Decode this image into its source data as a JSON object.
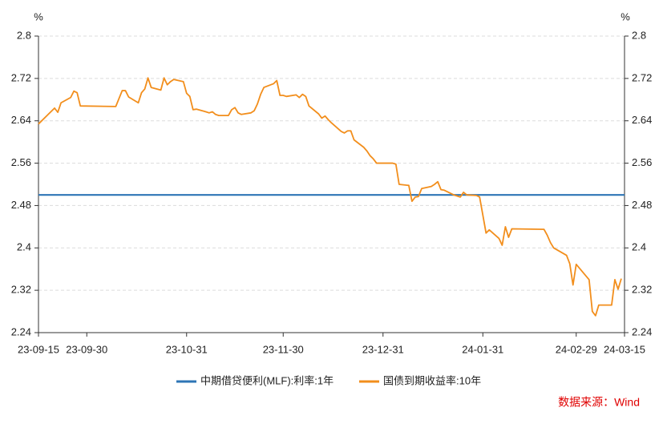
{
  "chart_data": {
    "type": "line",
    "unit_label": "%",
    "xlim": [
      "23-09-15",
      "24-03-15"
    ],
    "xticks": [
      "23-09-15",
      "23-09-30",
      "23-10-31",
      "23-11-30",
      "23-12-31",
      "24-01-31",
      "24-02-29",
      "24-03-15"
    ],
    "ylim": [
      2.24,
      2.8
    ],
    "yticks": [
      2.24,
      2.32,
      2.4,
      2.48,
      2.56,
      2.64,
      2.72,
      2.8
    ],
    "y2lim": [
      2.24,
      2.8
    ],
    "y2ticks": [
      2.24,
      2.32,
      2.4,
      2.48,
      2.56,
      2.64,
      2.72,
      2.8
    ],
    "grid": true,
    "legend": "bottom",
    "series": [
      {
        "name": "中期借贷便利(MLF):利率:1年",
        "color": "#2e75b6",
        "x": [
          "23-09-15",
          "24-03-15"
        ],
        "values": [
          2.5,
          2.5
        ]
      },
      {
        "name": "国债到期收益率:10年",
        "color": "#f28e1c",
        "axis": "y2",
        "x": [
          "23-09-15",
          "23-09-18",
          "23-09-20",
          "23-09-21",
          "23-09-22",
          "23-09-25",
          "23-09-26",
          "23-09-27",
          "23-09-28",
          "23-10-09",
          "23-10-11",
          "23-10-12",
          "23-10-13",
          "23-10-16",
          "23-10-17",
          "23-10-18",
          "23-10-19",
          "23-10-20",
          "23-10-23",
          "23-10-24",
          "23-10-25",
          "23-10-26",
          "23-10-27",
          "23-10-30",
          "23-10-31",
          "23-11-01",
          "23-11-02",
          "23-11-03",
          "23-11-06",
          "23-11-07",
          "23-11-08",
          "23-11-09",
          "23-11-10",
          "23-11-13",
          "23-11-14",
          "23-11-15",
          "23-11-16",
          "23-11-17",
          "23-11-20",
          "23-11-21",
          "23-11-22",
          "23-11-23",
          "23-11-24",
          "23-11-27",
          "23-11-28",
          "23-11-29",
          "23-11-30",
          "23-12-01",
          "23-12-04",
          "23-12-05",
          "23-12-06",
          "23-12-07",
          "23-12-08",
          "23-12-11",
          "23-12-12",
          "23-12-13",
          "23-12-14",
          "23-12-15",
          "23-12-18",
          "23-12-19",
          "23-12-20",
          "23-12-21",
          "23-12-22",
          "23-12-25",
          "23-12-26",
          "23-12-27",
          "23-12-28",
          "23-12-29",
          "24-01-02",
          "24-01-03",
          "24-01-04",
          "24-01-05",
          "24-01-08",
          "24-01-09",
          "24-01-10",
          "24-01-11",
          "24-01-12",
          "24-01-15",
          "24-01-16",
          "24-01-17",
          "24-01-18",
          "24-01-19",
          "24-01-22",
          "24-01-23",
          "24-01-24",
          "24-01-25",
          "24-01-26",
          "24-01-29",
          "24-01-30",
          "24-02-01",
          "24-02-02",
          "24-02-05",
          "24-02-06",
          "24-02-07",
          "24-02-08",
          "24-02-09",
          "24-02-19",
          "24-02-20",
          "24-02-21",
          "24-02-22",
          "24-02-26",
          "24-02-27",
          "24-02-28",
          "24-02-29",
          "24-03-04",
          "24-03-05",
          "24-03-06",
          "24-03-07",
          "24-03-11",
          "24-03-12",
          "24-03-13",
          "24-03-14"
        ],
        "values": [
          2.634,
          2.652,
          2.664,
          2.656,
          2.674,
          2.684,
          2.696,
          2.693,
          2.668,
          2.667,
          2.697,
          2.697,
          2.685,
          2.674,
          2.693,
          2.7,
          2.721,
          2.703,
          2.698,
          2.721,
          2.708,
          2.714,
          2.718,
          2.714,
          2.692,
          2.686,
          2.661,
          2.662,
          2.657,
          2.655,
          2.657,
          2.652,
          2.65,
          2.65,
          2.661,
          2.665,
          2.655,
          2.652,
          2.655,
          2.659,
          2.672,
          2.69,
          2.703,
          2.71,
          2.716,
          2.688,
          2.688,
          2.686,
          2.689,
          2.684,
          2.69,
          2.686,
          2.668,
          2.653,
          2.645,
          2.649,
          2.642,
          2.636,
          2.62,
          2.617,
          2.621,
          2.621,
          2.604,
          2.59,
          2.583,
          2.574,
          2.568,
          2.56,
          2.56,
          2.56,
          2.558,
          2.52,
          2.518,
          2.488,
          2.496,
          2.497,
          2.512,
          2.516,
          2.52,
          2.525,
          2.51,
          2.509,
          2.5,
          2.498,
          2.496,
          2.505,
          2.5,
          2.499,
          2.496,
          2.428,
          2.434,
          2.418,
          2.405,
          2.44,
          2.42,
          2.436,
          2.435,
          2.424,
          2.41,
          2.4,
          2.386,
          2.37,
          2.33,
          2.369,
          2.34,
          2.28,
          2.272,
          2.292,
          2.292,
          2.34,
          2.322,
          2.342
        ]
      }
    ],
    "source": "数据来源：Wind"
  }
}
